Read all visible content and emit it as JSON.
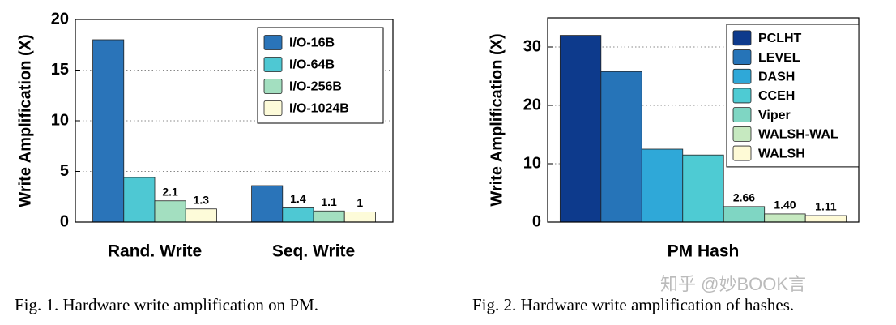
{
  "chart_data": [
    {
      "type": "bar",
      "y_label": "Write Amplification (X)",
      "categories": [
        "Rand. Write",
        "Seq. Write"
      ],
      "series": [
        {
          "name": "I/O-16B",
          "color": "#2a74b9",
          "values": [
            18,
            3.6
          ],
          "value_labels": [
            null,
            null
          ]
        },
        {
          "name": "I/O-64B",
          "color": "#4ec8d3",
          "values": [
            4.4,
            1.4
          ],
          "value_labels": [
            null,
            "1.4"
          ]
        },
        {
          "name": "I/O-256B",
          "color": "#a3dfc0",
          "values": [
            2.1,
            1.1
          ],
          "value_labels": [
            "2.1",
            "1.1"
          ]
        },
        {
          "name": "I/O-1024B",
          "color": "#fdfbd9",
          "values": [
            1.3,
            1
          ],
          "value_labels": [
            "1.3",
            "1"
          ]
        }
      ],
      "ylim": [
        0,
        20
      ],
      "yticks": [
        0,
        5,
        10,
        15,
        20
      ],
      "grid": true,
      "legend": "upper right",
      "caption": "Fig. 1.  Hardware write amplification on PM."
    },
    {
      "type": "bar",
      "y_label": "Write Amplification (X)",
      "categories": [
        "PM Hash"
      ],
      "series": [
        {
          "name": "PCLHT",
          "color": "#0d3a8c",
          "values": [
            32
          ],
          "value_labels": [
            null
          ]
        },
        {
          "name": "LEVEL",
          "color": "#2674b8",
          "values": [
            25.8
          ],
          "value_labels": [
            null
          ]
        },
        {
          "name": "DASH",
          "color": "#2fa8d8",
          "values": [
            12.5
          ],
          "value_labels": [
            null
          ]
        },
        {
          "name": "CCEH",
          "color": "#4ecbd3",
          "values": [
            11.5
          ],
          "value_labels": [
            null
          ]
        },
        {
          "name": "Viper",
          "color": "#7fd6c3",
          "values": [
            2.66
          ],
          "value_labels": [
            "2.66"
          ]
        },
        {
          "name": "WALSH-WAL",
          "color": "#c6e9c0",
          "values": [
            1.4
          ],
          "value_labels": [
            "1.40"
          ]
        },
        {
          "name": "WALSH",
          "color": "#fefad6",
          "values": [
            1.11
          ],
          "value_labels": [
            "1.11"
          ]
        }
      ],
      "ylim": [
        0,
        35
      ],
      "yticks": [
        0,
        10,
        20,
        30
      ],
      "grid": true,
      "legend": "upper right",
      "caption": "Fig. 2.  Hardware write amplification of hashes."
    }
  ],
  "watermark": "知乎 @妙BOOK言"
}
